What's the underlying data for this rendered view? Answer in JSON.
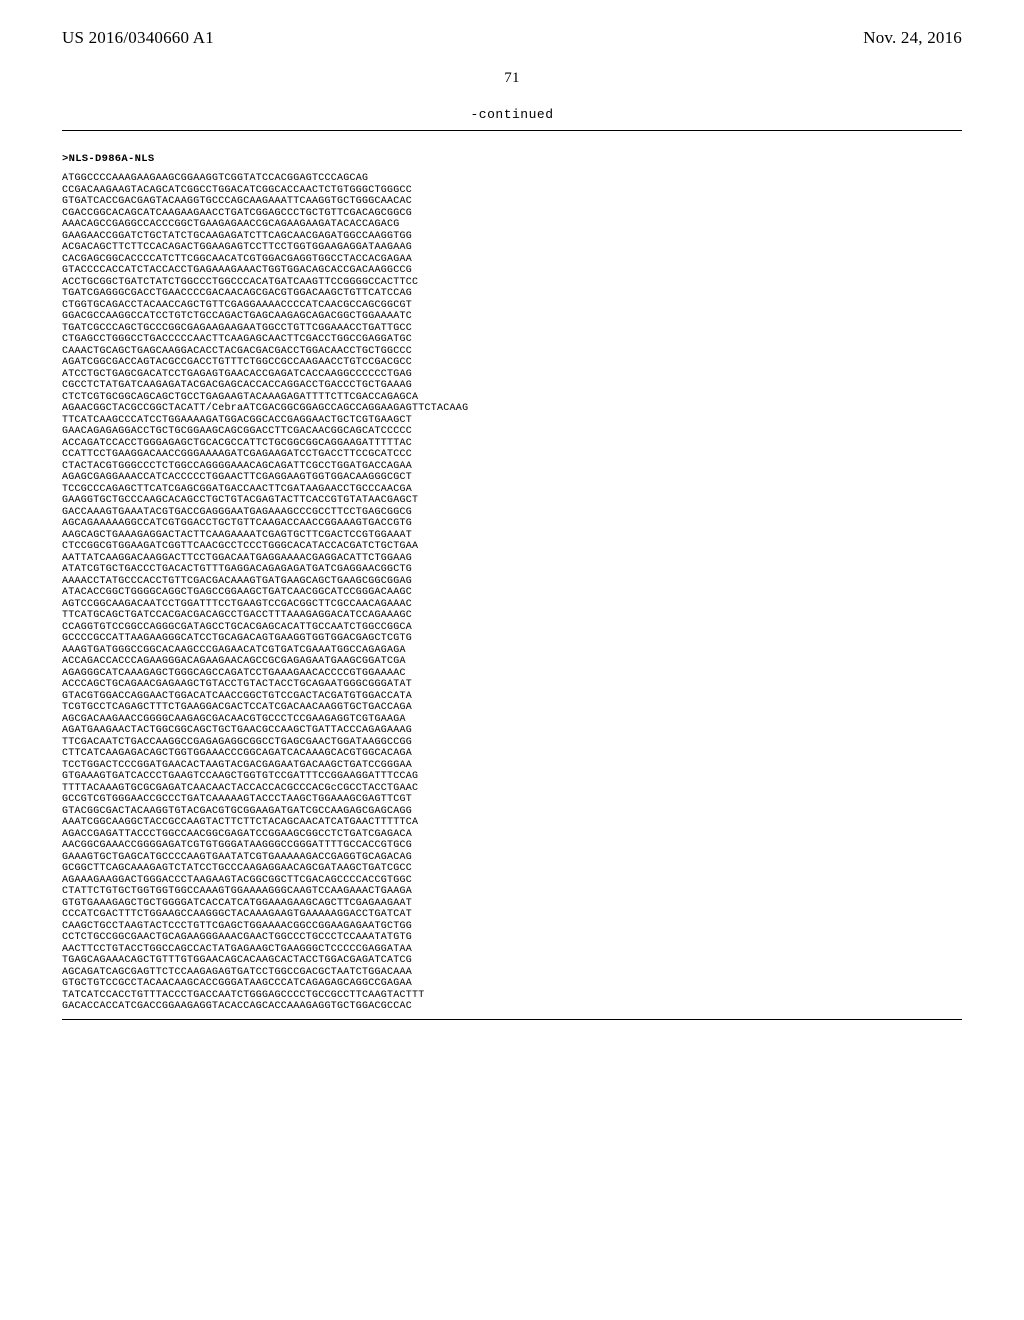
{
  "header": {
    "pub_number": "US 2016/0340660 A1",
    "pub_date": "Nov. 24, 2016"
  },
  "page_number": "71",
  "continued_label": "-continued",
  "sequence": {
    "label": ">NLS-D986A-NLS",
    "lines": [
      "ATGGCCCCAAAGAAGAAGCGGAAGGTCGGTATCCACGGAGTCCCAGCAG",
      "CCGACAAGAAGTACAGCATCGGCCTGGACATCGGCACCAACTCTGTGGGCTGGGCC",
      "GTGATCACCGACGAGTACAAGGTGCCCAGCAAGAAATTCAAGGTGCTGGGCAACAC",
      "CGACCGGCACAGCATCAAGAAGAACCTGATCGGAGCCCTGCTGTTCGACAGCGGCG",
      "AAACAGCCGAGGCCACCCGGCTGAAGAGAACCGCAGAAGAAGATACACCAGACG",
      "GAAGAACCGGATCTGCTATCTGCAAGAGATCTTCAGCAACGAGATGGCCAAGGTGG",
      "ACGACAGCTTCTTCCACAGACTGGAAGAGTCCTTCCTGGTGGAAGAGGATAAGAAG",
      "CACGAGCGGCACCCCATCTTCGGCAACATCGTGGACGAGGTGGCCTACCACGAGAA",
      "GTACCCCACCATCTACCACCTGAGAAAGAAACTGGTGGACAGCACCGACAAGGCCG",
      "ACCTGCGGCTGATCTATCTGGCCCTGGCCCACATGATCAAGTTCCGGGGCCACTTCC",
      "TGATCGAGGGCGACCTGAACCCCGACAACAGCGACGTGGACAAGCTGTTCATCCAG",
      "CTGGTGCAGACCTACAACCAGCTGTTCGAGGAAAACCCCATCAACGCCAGCGGCGT",
      "GGACGCCAAGGCCATCCTGTCTGCCAGACTGAGCAAGAGCAGACGGCTGGAAAATC",
      "TGATCGCCCAGCTGCCCGGCGAGAAGAAGAATGGCCTGTTCGGAAACCTGATTGCC",
      "CTGAGCCTGGGCCTGACCCCCAACTTCAAGAGCAACTTCGACCTGGCCGAGGATGC",
      "CAAACTGCAGCTGAGCAAGGACACCTACGACGACGACCTGGACAACCTGCTGGCCC",
      "AGATCGGCGACCAGTACGCCGACCTGTTTCTGGCCGCCAAGAACCTGTCCGACGCC",
      "ATCCTGCTGAGCGACATCCTGAGAGTGAACACCGAGATCACCAAGGCCCCCCTGAG",
      "CGCCTCTATGATCAAGAGATACGACGAGCACCACCAGGACCTGACCCTGCTGAAAG",
      "CTCTCGTGCGGCAGCAGCTGCCTGAGAAGTACAAAGAGATTTTCTTCGACCAGAGCA",
      "AGAACGGCTACGCCGGCTACATT/CebraATCGACGGCGGAGCCAGCCAGGAAGAGTTCTACAAG",
      "TTCATCAAGCCCATCCTGGAAAAGATGGACGGCACCGAGGAACTGCTCGTGAAGCT",
      "GAACAGAGAGGACCTGCTGCGGAAGCAGCGGACCTTCGACAACGGCAGCATCCCCC",
      "ACCAGATCCACCTGGGAGAGCTGCACGCCATTCTGCGGCGGCAGGAAGATTTTTAC",
      "CCATTCCTGAAGGACAACCGGGAAAAGATCGAGAAGATCCTGACCTTCCGCATCCC",
      "CTACTACGTGGGCCCTCTGGCCAGGGGAAACAGCAGATTCGCCTGGATGACCAGAA",
      "AGAGCGAGGAAACCATCACCCCCTGGAACTTCGAGGAAGTGGTGGACAAGGGCGCT",
      "TCCGCCCAGAGCTTCATCGAGCGGATGACCAACTTCGATAAGAACCTGCCCAACGA",
      "GAAGGTGCTGCCCAAGCACAGCCTGCTGTACGAGTACTTCACCGTGTATAACGAGCT",
      "GACCAAAGTGAAATACGTGACCGAGGGAATGAGAAAGCCCGCCTTCCTGAGCGGCG",
      "AGCAGAAAAAGGCCATCGTGGACCTGCTGTTCAAGACCAACCGGAAAGTGACCGTG",
      "AAGCAGCTGAAAGAGGACTACTTCAAGAAAATCGAGTGCTTCGACTCCGTGGAAAT",
      "CTCCGGCGTGGAAGATCGGTTCAACGCCTCCCTGGGCACATACCACGATCTGCTGAA",
      "AATTATCAAGGACAAGGACTTCCTGGACAATGAGGAAAACGAGGACATTCTGGAAG",
      "ATATCGTGCTGACCCTGACACTGTTTGAGGACAGAGAGATGATCGAGGAACGGCTG",
      "AAAACCTATGCCCACCTGTTCGACGACAAAGTGATGAAGCAGCTGAAGCGGCGGAG",
      "ATACACCGGCTGGGGCAGGCTGAGCCGGAAGCTGATCAACGGCATCCGGGACAAGC",
      "AGTCCGGCAAGACAATCCTGGATTTCCTGAAGTCCGACGGCTTCGCCAACAGAAAC",
      "TTCATGCAGCTGATCCACGACGACAGCCTGACCTTTAAAGAGGACATCCAGAAAGC",
      "CCAGGTGTCCGGCCAGGGCGATAGCCTGCACGAGCACATTGCCAATCTGGCCGGCA",
      "GCCCCGCCATTAAGAAGGGCATCCTGCAGACAGTGAAGGTGGTGGACGAGCTCGTG",
      "AAAGTGATGGGCCGGCACAAGCCCGAGAACATCGTGATCGAAATGGCCAGAGAGA",
      "ACCAGACCACCCAGAAGGGACAGAAGAACAGCCGCGAGAGAATGAAGCGGATCGA",
      "AGAGGGCATCAAAGAGCTGGGCAGCCAGATCCTGAAAGAACACCCCGTGGAAAAC",
      "ACCCAGCTGCAGAACGAGAAGCTGTACCTGTACTACCTGCAGAATGGGCGGGATAT",
      "GTACGTGGACCAGGAACTGGACATCAACCGGCTGTCCGACTACGATGTGGACCATA",
      "TCGTGCCTCAGAGCTTTCTGAAGGACGACTCCATCGACAACAAGGTGCTGACCAGA",
      "AGCGACAAGAACCGGGGCAAGAGCGACAACGTGCCCTCCGAAGAGGTCGTGAAGA",
      "AGATGAAGAACTACTGGCGGCAGCTGCTGAACGCCAAGCTGATTACCCAGAGAAAG",
      "TTCGACAATCTGACCAAGGCCGAGAGAGGCGGCCTGAGCGAACTGGATAAGGCCGG",
      "CTTCATCAAGAGACAGCTGGTGGAAACCCGGCAGATCACAAAGCACGTGGCACAGA",
      "TCCTGGACTCCCGGATGAACACTAAGTACGACGAGAATGACAAGCTGATCCGGGAA",
      "GTGAAAGTGATCACCCTGAAGTCCAAGCTGGTGTCCGATTTCCGGAAGGATTTCCAG",
      "TTTTACAAAGTGCGCGAGATCAACAACTACCACCACGCCCACGcCGCCTACCTGAAC",
      "GCCGTCGTGGGAACCGCCCTGATCAAAAAGTACCCTAAGCTGGAAAGCGAGTTCGT",
      "GTACGGCGACTACAAGGTGTACGACGTGCGGAAGATGATCGCCAAGAGCGAGCAGG",
      "AAATCGGCAAGGCTACCGCCAAGTACTTCTTCTACAGCAACATCATGAACTTTTTCA",
      "AGACCGAGATTACCCTGGCCAACGGCGAGATCCGGAAGCGGCCTCTGATCGAGACA",
      "AACGGCGAAACCGGGGAGATCGTGTGGGATAAGGGCCGGGATTTTGCCACCGTGCG",
      "GAAAGTGCTGAGCATGCCCCAAGTGAATATCGTGAAAAAGACCGAGGTGCAGACAG",
      "GCGGCTTCAGCAAAGAGTCTATCCTGCCCAAGAGGAACAGCGATAAGCTGATCGCC",
      "AGAAAGAAGGACTGGGACCCTAAGAAGTACGGCGGCTTCGACAGCCCCACCGTGGC",
      "CTATTCTGTGCTGGTGGTGGCCAAAGTGGAAAAGGGCAAGTCCAAGAAACTGAAGA",
      "GTGTGAAAGAGCTGCTGGGGATCACCATCATGGAAAGAAGCAGCTTCGAGAAGAAT",
      "CCCATCGACTTTCTGGAAGCCAAGGGCTACAAAGAAGTGAAAAAGGACCTGATCAT",
      "CAAGCTGCCTAAGTACTCCCTGTTCGAGCTGGAAAACGGCCGGAAGAGAATGCTGG",
      "CCTCTGCCGGCGAACTGCAGAAGGGAAACGAACTGGCCCTGCCCTCCAAATATGTG",
      "AACTTCCTGTACCTGGCCAGCCACTATGAGAAGCTGAAGGGCTCCCCCGAGGATAA",
      "TGAGCAGAAACAGCTGTTTGTGGAACAGCACAAGCACTACCTGGACGAGATCATCG",
      "AGCAGATCAGCGAGTTCTCCAAGAGAGTGATCCTGGCCGACGCTAATCTGGACAAA",
      "GTGCTGTCCGCCTACAACAAGCACCGGGATAAGCCCATCAGAGAGCAGGCCGAGAA",
      "TATCATCCACCTGTTTACCCTGACCAATCTGGGAGCCCCTGCCGCCTTCAAGTACTTT",
      "GACACCACCATCGACCGGAAGAGGTACACCAGCACCAAAGAGGTGCTGGACGCCAC"
    ]
  }
}
